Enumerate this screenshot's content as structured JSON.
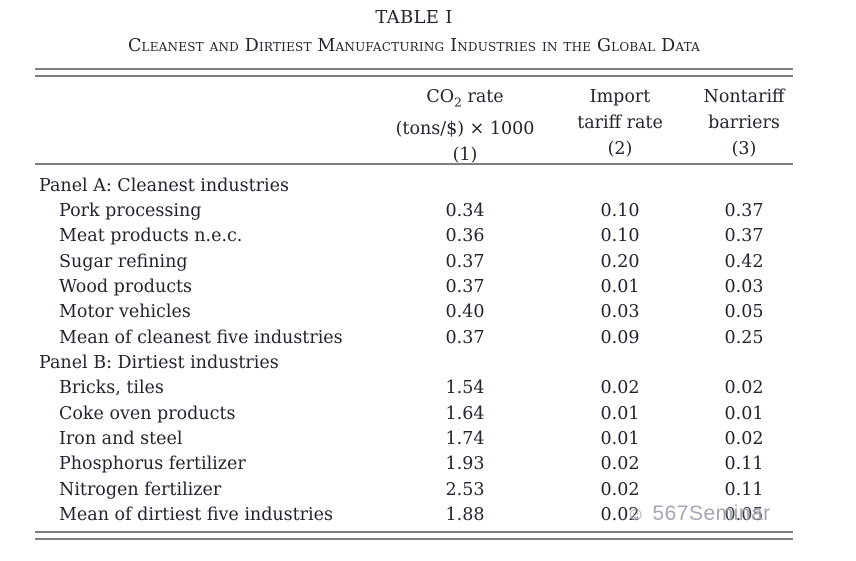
{
  "page": {
    "title": "TABLE I",
    "subtitle": "Cleanest and Dirtiest Manufacturing Industries in the Global Data"
  },
  "header": {
    "co2": {
      "prefix": "CO",
      "subscript": "2",
      "suffix": " rate",
      "line2": "(tons/$) × 1000",
      "line3": "(1)"
    },
    "import_tariff": {
      "line1": "Import",
      "line2": "tariff rate",
      "line3": "(2)"
    },
    "nontariff": {
      "line1": "Nontariff",
      "line2": "barriers",
      "line3": "(3)"
    }
  },
  "rows": [
    {
      "type": "panel",
      "label": "Panel A: Cleanest industries"
    },
    {
      "type": "data",
      "label": "Pork processing",
      "co2_rate": "0.34",
      "import_tariff_rate": "0.10",
      "nontariff_barriers": "0.37"
    },
    {
      "type": "data",
      "label": "Meat products n.e.c.",
      "co2_rate": "0.36",
      "import_tariff_rate": "0.10",
      "nontariff_barriers": "0.37"
    },
    {
      "type": "data",
      "label": "Sugar refining",
      "co2_rate": "0.37",
      "import_tariff_rate": "0.20",
      "nontariff_barriers": "0.42"
    },
    {
      "type": "data",
      "label": "Wood products",
      "co2_rate": "0.37",
      "import_tariff_rate": "0.01",
      "nontariff_barriers": "0.03"
    },
    {
      "type": "data",
      "label": "Motor vehicles",
      "co2_rate": "0.40",
      "import_tariff_rate": "0.03",
      "nontariff_barriers": "0.05"
    },
    {
      "type": "data",
      "label": "Mean of cleanest five industries",
      "co2_rate": "0.37",
      "import_tariff_rate": "0.09",
      "nontariff_barriers": "0.25"
    },
    {
      "type": "panel",
      "label": "Panel B: Dirtiest industries"
    },
    {
      "type": "data",
      "label": "Bricks, tiles",
      "co2_rate": "1.54",
      "import_tariff_rate": "0.02",
      "nontariff_barriers": "0.02"
    },
    {
      "type": "data",
      "label": "Coke oven products",
      "co2_rate": "1.64",
      "import_tariff_rate": "0.01",
      "nontariff_barriers": "0.01"
    },
    {
      "type": "data",
      "label": "Iron and steel",
      "co2_rate": "1.74",
      "import_tariff_rate": "0.01",
      "nontariff_barriers": "0.02"
    },
    {
      "type": "data",
      "label": "Phosphorus fertilizer",
      "co2_rate": "1.93",
      "import_tariff_rate": "0.02",
      "nontariff_barriers": "0.11"
    },
    {
      "type": "data",
      "label": "Nitrogen fertilizer",
      "co2_rate": "2.53",
      "import_tariff_rate": "0.02",
      "nontariff_barriers": "0.11"
    },
    {
      "type": "data",
      "label": "Mean of dirtiest five industries",
      "co2_rate": "1.88",
      "import_tariff_rate": "0.02",
      "nontariff_barriers": "0.05"
    }
  ],
  "watermark": {
    "icon": "☺",
    "text": "567Seminar"
  },
  "colors": {
    "text": "#21242e",
    "rule": "#7f7f7f",
    "watermark": "#979ca8",
    "background": "#ffffff"
  }
}
